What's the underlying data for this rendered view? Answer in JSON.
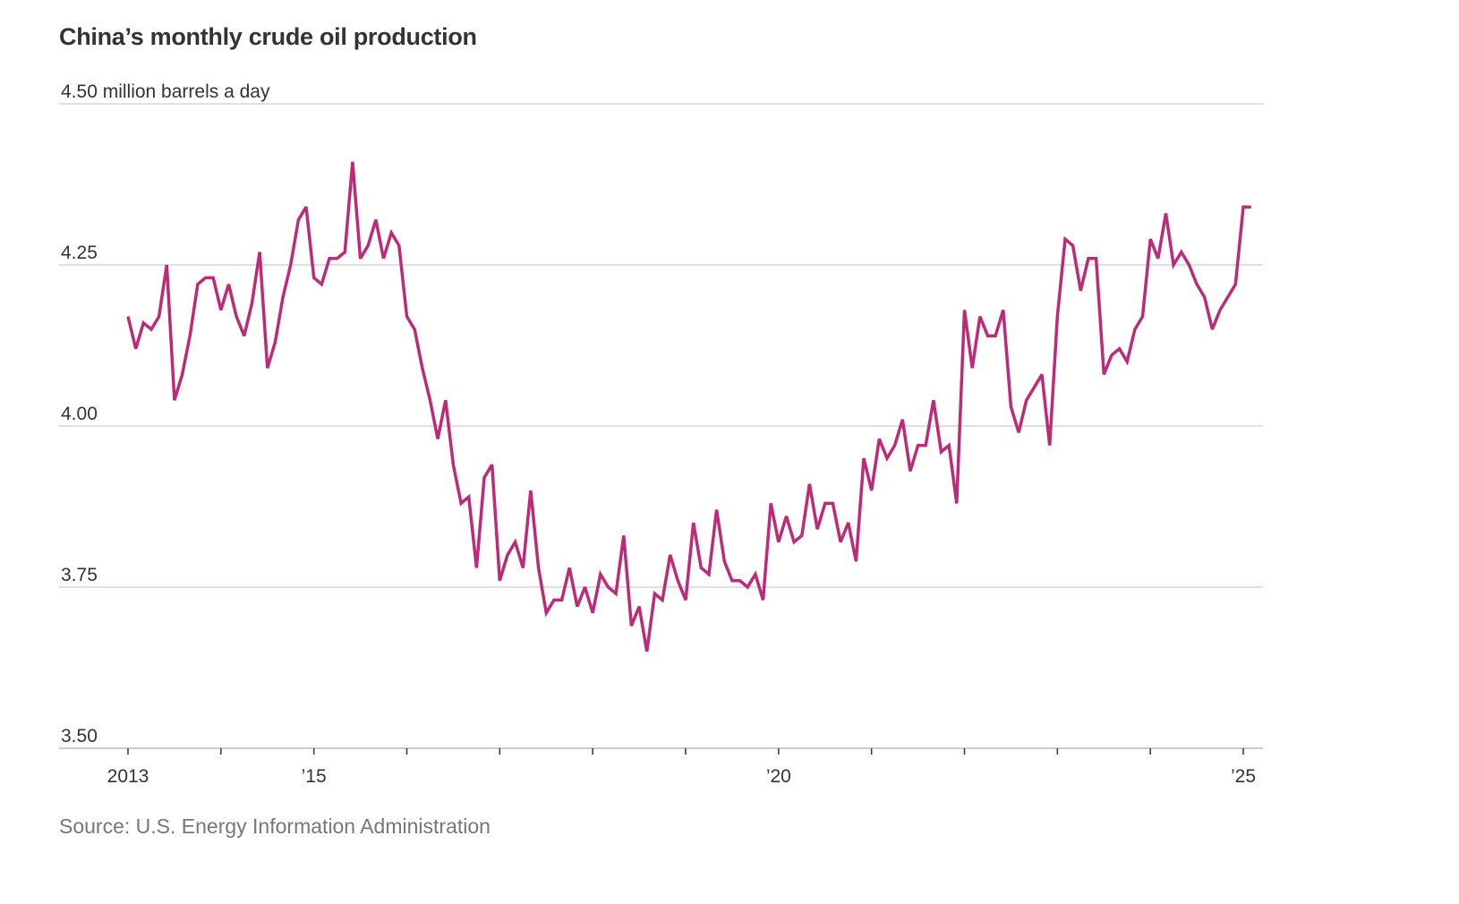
{
  "chart_data": {
    "type": "line",
    "title": "China’s monthly crude oil production",
    "ylabel": "million barrels a day",
    "unit_label_suffix": " million barrels a day",
    "source": "Source: U.S. Energy Information Administration",
    "ylim": [
      3.5,
      4.5
    ],
    "yticks": [
      {
        "value": 4.5,
        "label": "4.50"
      },
      {
        "value": 4.25,
        "label": "4.25"
      },
      {
        "value": 4.0,
        "label": "4.00"
      },
      {
        "value": 3.75,
        "label": "3.75"
      },
      {
        "value": 3.5,
        "label": "3.50"
      }
    ],
    "x_start": "2013-01",
    "x_frequency": "monthly",
    "xticks_years": [
      2013,
      2014,
      2015,
      2016,
      2017,
      2018,
      2019,
      2020,
      2021,
      2022,
      2023,
      2024,
      2025
    ],
    "xtick_labels": [
      {
        "year": 2013,
        "label": "2013"
      },
      {
        "year": 2015,
        "label": "’15"
      },
      {
        "year": 2020,
        "label": "’20"
      },
      {
        "year": 2025,
        "label": "’25"
      }
    ],
    "grid": true,
    "line_color": "#be2a77",
    "series": [
      {
        "name": "China crude oil production",
        "values": [
          4.17,
          4.12,
          4.16,
          4.15,
          4.17,
          4.25,
          4.04,
          4.08,
          4.14,
          4.22,
          4.23,
          4.23,
          4.18,
          4.22,
          4.17,
          4.14,
          4.19,
          4.27,
          4.09,
          4.13,
          4.2,
          4.25,
          4.32,
          4.34,
          4.23,
          4.22,
          4.26,
          4.26,
          4.27,
          4.41,
          4.26,
          4.28,
          4.32,
          4.26,
          4.3,
          4.28,
          4.17,
          4.15,
          4.09,
          4.04,
          3.98,
          4.04,
          3.94,
          3.88,
          3.89,
          3.78,
          3.92,
          3.94,
          3.76,
          3.8,
          3.82,
          3.78,
          3.9,
          3.78,
          3.71,
          3.73,
          3.73,
          3.78,
          3.72,
          3.75,
          3.71,
          3.77,
          3.75,
          3.74,
          3.83,
          3.69,
          3.72,
          3.65,
          3.74,
          3.73,
          3.8,
          3.76,
          3.73,
          3.85,
          3.78,
          3.77,
          3.87,
          3.79,
          3.76,
          3.76,
          3.75,
          3.77,
          3.73,
          3.88,
          3.82,
          3.86,
          3.82,
          3.83,
          3.91,
          3.84,
          3.88,
          3.88,
          3.82,
          3.85,
          3.79,
          3.95,
          3.9,
          3.98,
          3.95,
          3.97,
          4.01,
          3.93,
          3.97,
          3.97,
          4.04,
          3.96,
          3.97,
          3.88,
          4.18,
          4.09,
          4.17,
          4.14,
          4.14,
          4.18,
          4.03,
          3.99,
          4.04,
          4.06,
          4.08,
          3.97,
          4.17,
          4.29,
          4.28,
          4.21,
          4.26,
          4.26,
          4.08,
          4.11,
          4.12,
          4.1,
          4.15,
          4.17,
          4.29,
          4.26,
          4.33,
          4.25,
          4.27,
          4.25,
          4.22,
          4.2,
          4.15,
          4.18,
          4.2,
          4.22,
          4.34,
          4.34
        ]
      }
    ]
  }
}
